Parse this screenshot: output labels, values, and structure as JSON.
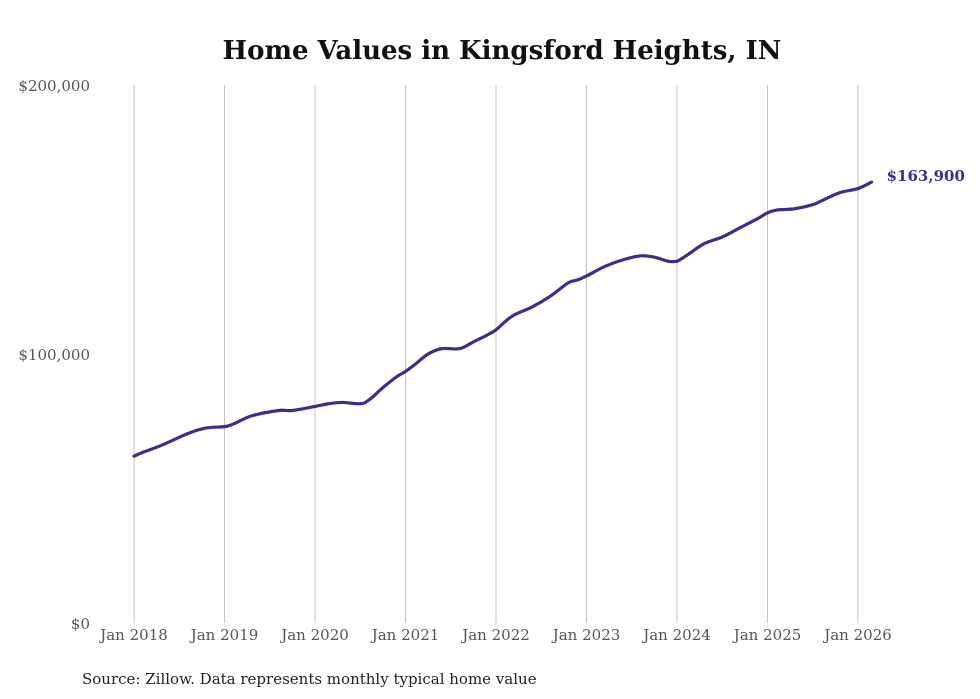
{
  "chart_data": {
    "type": "line",
    "title": "Home Values in Kingsford Heights, IN",
    "xlabel": "",
    "ylabel": "",
    "ylim": [
      0,
      200000
    ],
    "yticks": [
      {
        "value": 0,
        "label": "$0"
      },
      {
        "value": 100000,
        "label": "$100,000"
      },
      {
        "value": 200000,
        "label": "$200,000"
      }
    ],
    "xlim": [
      2018.0,
      2026.0
    ],
    "xticks": [
      {
        "value": 2018,
        "label": "Jan 2018"
      },
      {
        "value": 2019,
        "label": "Jan 2019"
      },
      {
        "value": 2020,
        "label": "Jan 2020"
      },
      {
        "value": 2021,
        "label": "Jan 2021"
      },
      {
        "value": 2022,
        "label": "Jan 2022"
      },
      {
        "value": 2023,
        "label": "Jan 2023"
      },
      {
        "value": 2024,
        "label": "Jan 2024"
      },
      {
        "value": 2025,
        "label": "Jan 2025"
      },
      {
        "value": 2026,
        "label": "Jan 2026"
      }
    ],
    "grid": "vertical",
    "series": [
      {
        "name": "Typical home value",
        "color": "#3b3089",
        "x": [
          2018.0,
          2018.1,
          2018.3,
          2018.6,
          2018.8,
          2019.0,
          2019.1,
          2019.3,
          2019.6,
          2019.75,
          2020.0,
          2020.15,
          2020.3,
          2020.5,
          2020.6,
          2020.75,
          2020.9,
          2021.0,
          2021.1,
          2021.25,
          2021.4,
          2021.6,
          2021.75,
          2021.9,
          2022.0,
          2022.1,
          2022.2,
          2022.4,
          2022.6,
          2022.8,
          2022.9,
          2023.0,
          2023.2,
          2023.4,
          2023.6,
          2023.75,
          2023.9,
          2024.0,
          2024.1,
          2024.3,
          2024.5,
          2024.7,
          2024.9,
          2025.0,
          2025.1,
          2025.3,
          2025.5,
          2025.6,
          2025.8,
          2026.0,
          2026.15
        ],
        "values": [
          62000,
          63500,
          66000,
          70500,
          72500,
          73000,
          74000,
          77000,
          79000,
          79000,
          80500,
          81500,
          82000,
          81500,
          83000,
          87500,
          91500,
          93500,
          96000,
          100000,
          102000,
          102000,
          104500,
          107000,
          109000,
          112000,
          114500,
          117500,
          121500,
          126500,
          127500,
          129000,
          132500,
          135000,
          136500,
          136000,
          134500,
          134500,
          136500,
          141000,
          143500,
          147000,
          150500,
          152500,
          153500,
          154000,
          155500,
          157000,
          160000,
          161500,
          163900
        ]
      }
    ],
    "end_label": "$163,900",
    "source": "Source: Zillow. Data represents monthly typical home value"
  }
}
